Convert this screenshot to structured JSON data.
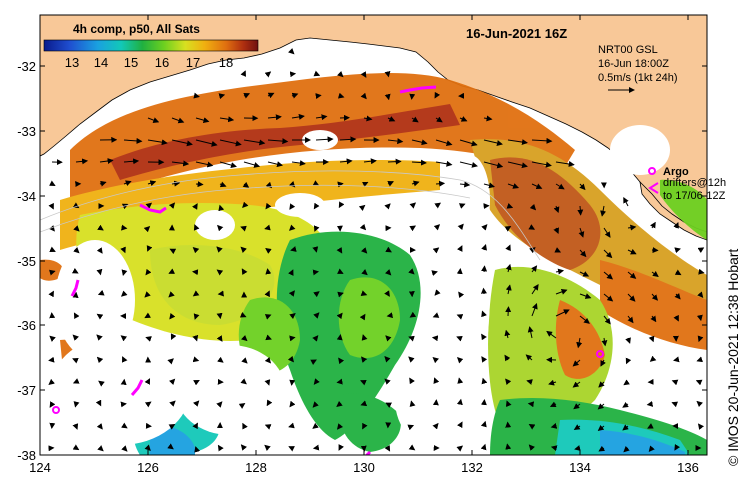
{
  "map": {
    "title": "16-Jun-2021 16Z",
    "composite_label": "4h comp, p50, All Sats",
    "colorbar": {
      "ticks": [
        "13",
        "14",
        "15",
        "16",
        "17",
        "18"
      ],
      "colors": [
        "#0a1a8c",
        "#1f4fd0",
        "#1aa0e0",
        "#12c8b8",
        "#20b040",
        "#6cd020",
        "#d8e020",
        "#f0b010",
        "#e07010",
        "#b03010",
        "#701010"
      ]
    },
    "current_info": {
      "line1": "NRT00 GSL",
      "line2": "16-Jun 18:00Z",
      "line3": "0.5m/s (1kt 24h)"
    },
    "legend": {
      "argo": "Argo",
      "drifters_line1": "drifters@12h",
      "drifters_line2": "to 17/06-12Z"
    },
    "credit": "© IMOS 20-Jun-2021 12:38 Hobart",
    "x_ticks": [
      "124",
      "126",
      "128",
      "130",
      "132",
      "134",
      "136"
    ],
    "y_ticks": [
      "-32",
      "-33",
      "-34",
      "-35",
      "-36",
      "-37",
      "-38"
    ],
    "colors": {
      "land": "#f8c898",
      "ocean_nodata": "#ffffff",
      "argo": "#ff00ff"
    }
  }
}
